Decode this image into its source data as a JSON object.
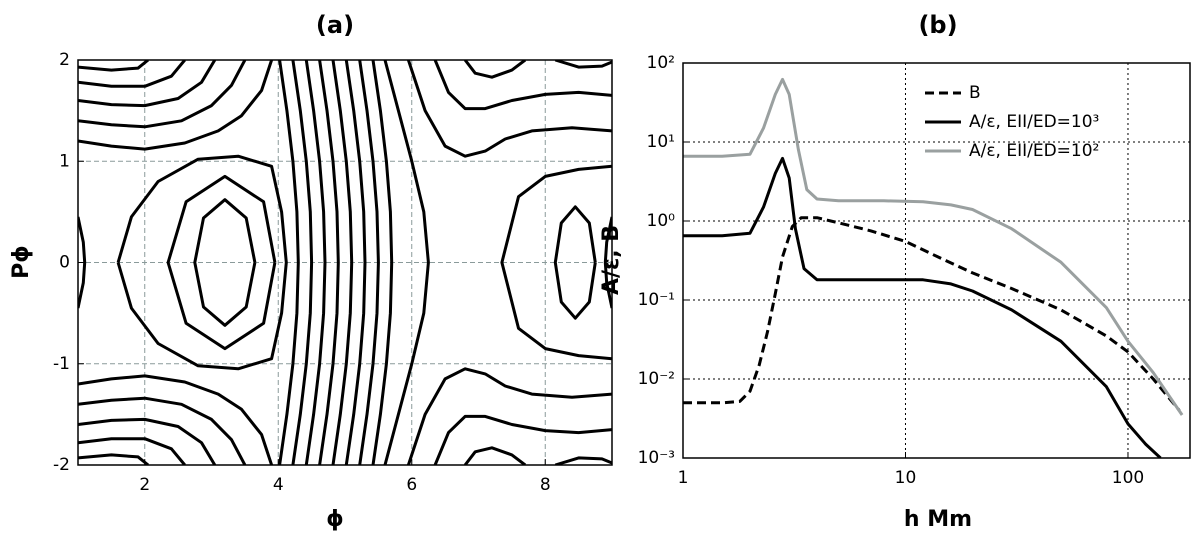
{
  "chart_data": [
    {
      "type": "contour",
      "title": "(a)",
      "x_label": "ϕ",
      "y_label": "Pϕ",
      "color": "#000000",
      "xlim": [
        1,
        9
      ],
      "ylim": [
        -2,
        2
      ],
      "xticks": [
        2,
        4,
        6,
        8
      ],
      "yticks": [
        -2,
        -1,
        0,
        1,
        2
      ],
      "grid": true,
      "series": [
        {
          "x": [
            3.65,
            3.52,
            3.2,
            2.88,
            2.75,
            2.88,
            3.2,
            3.52,
            3.65
          ],
          "values": [
            0,
            0.44,
            0.62,
            0.44,
            0,
            -0.44,
            -0.62,
            -0.44,
            0
          ]
        },
        {
          "x": [
            3.95,
            3.78,
            3.2,
            2.62,
            2.35,
            2.62,
            3.2,
            3.78,
            3.95
          ],
          "values": [
            0,
            0.6,
            0.85,
            0.6,
            0,
            -0.6,
            -0.85,
            -0.6,
            0
          ]
        },
        {
          "x": [
            1.6,
            1.8,
            2.2,
            2.8,
            3.4,
            3.9,
            4.05,
            4.12,
            4.05,
            3.9,
            3.4,
            2.8,
            2.2,
            1.8,
            1.6
          ],
          "values": [
            0,
            0.45,
            0.8,
            1.02,
            1.05,
            0.95,
            0.5,
            0,
            -0.5,
            -0.95,
            -1.05,
            -1.02,
            -0.8,
            -0.45,
            0
          ]
        },
        {
          "x": [
            1,
            1.08,
            1.1,
            1.08,
            1
          ],
          "values": [
            0.45,
            0.2,
            0,
            -0.2,
            -0.45
          ]
        },
        {
          "x": [
            1,
            1.5,
            2,
            2.6,
            3.1,
            3.45,
            3.75,
            3.9
          ],
          "values": [
            1.2,
            1.15,
            1.12,
            1.18,
            1.3,
            1.45,
            1.7,
            2
          ]
        },
        {
          "x": [
            1,
            1.5,
            2,
            2.55,
            3.0,
            3.3,
            3.5
          ],
          "values": [
            1.4,
            1.36,
            1.34,
            1.4,
            1.55,
            1.75,
            2
          ]
        },
        {
          "x": [
            1,
            1.5,
            2,
            2.5,
            2.85,
            3.05
          ],
          "values": [
            1.6,
            1.56,
            1.55,
            1.62,
            1.78,
            2
          ]
        },
        {
          "x": [
            1,
            1.5,
            2,
            2.4,
            2.6
          ],
          "values": [
            1.78,
            1.74,
            1.74,
            1.84,
            2
          ]
        },
        {
          "x": [
            1,
            1.5,
            1.9,
            2.05
          ],
          "values": [
            1.93,
            1.9,
            1.92,
            2
          ]
        },
        {
          "x": [
            1,
            1.5,
            2,
            2.6,
            3.1,
            3.45,
            3.75,
            3.9
          ],
          "values": [
            -1.2,
            -1.15,
            -1.12,
            -1.18,
            -1.3,
            -1.45,
            -1.7,
            -2
          ]
        },
        {
          "x": [
            1,
            1.5,
            2,
            2.55,
            3.0,
            3.3,
            3.5
          ],
          "values": [
            -1.4,
            -1.36,
            -1.34,
            -1.4,
            -1.55,
            -1.75,
            -2
          ]
        },
        {
          "x": [
            1,
            1.5,
            2,
            2.5,
            2.85,
            3.05
          ],
          "values": [
            -1.6,
            -1.56,
            -1.55,
            -1.62,
            -1.78,
            -2
          ]
        },
        {
          "x": [
            1,
            1.5,
            2,
            2.4,
            2.6
          ],
          "values": [
            -1.78,
            -1.74,
            -1.74,
            -1.84,
            -2
          ]
        },
        {
          "x": [
            1,
            1.5,
            1.9,
            2.05
          ],
          "values": [
            -1.93,
            -1.9,
            -1.92,
            -2
          ]
        },
        {
          "x": [
            4.02,
            4.13,
            4.22,
            4.28,
            4.3,
            4.28,
            4.22,
            4.13,
            4.02
          ],
          "values": [
            2,
            1.5,
            1,
            0.5,
            0,
            -0.5,
            -1,
            -1.5,
            -2
          ]
        },
        {
          "x": [
            4.22,
            4.33,
            4.42,
            4.48,
            4.5,
            4.48,
            4.42,
            4.33,
            4.22
          ],
          "values": [
            2,
            1.5,
            1,
            0.5,
            0,
            -0.5,
            -1,
            -1.5,
            -2
          ]
        },
        {
          "x": [
            4.42,
            4.53,
            4.62,
            4.68,
            4.7,
            4.68,
            4.62,
            4.53,
            4.42
          ],
          "values": [
            2,
            1.5,
            1,
            0.5,
            0,
            -0.5,
            -1,
            -1.5,
            -2
          ]
        },
        {
          "x": [
            4.62,
            4.73,
            4.82,
            4.88,
            4.9,
            4.88,
            4.82,
            4.73,
            4.62
          ],
          "values": [
            2,
            1.5,
            1,
            0.5,
            0,
            -0.5,
            -1,
            -1.5,
            -2
          ]
        },
        {
          "x": [
            4.82,
            4.93,
            5.02,
            5.08,
            5.1,
            5.08,
            5.02,
            4.93,
            4.82
          ],
          "values": [
            2,
            1.5,
            1,
            0.5,
            0,
            -0.5,
            -1,
            -1.5,
            -2
          ]
        },
        {
          "x": [
            5.02,
            5.13,
            5.22,
            5.28,
            5.3,
            5.28,
            5.22,
            5.13,
            5.02
          ],
          "values": [
            2,
            1.5,
            1,
            0.5,
            0,
            -0.5,
            -1,
            -1.5,
            -2
          ]
        },
        {
          "x": [
            5.22,
            5.33,
            5.42,
            5.48,
            5.5,
            5.48,
            5.42,
            5.33,
            5.22
          ],
          "values": [
            2,
            1.5,
            1,
            0.5,
            0,
            -0.5,
            -1,
            -1.5,
            -2
          ]
        },
        {
          "x": [
            5.42,
            5.53,
            5.62,
            5.68,
            5.7,
            5.68,
            5.62,
            5.53,
            5.42
          ],
          "values": [
            2,
            1.5,
            1,
            0.5,
            0,
            -0.5,
            -1,
            -1.5,
            -2
          ]
        },
        {
          "x": [
            5.6,
            5.8,
            6.0,
            6.18,
            6.25,
            6.18,
            6.0,
            5.8,
            5.6
          ],
          "values": [
            2,
            1.5,
            1,
            0.5,
            0,
            -0.5,
            -1,
            -1.5,
            -2
          ]
        },
        {
          "x": [
            5.95,
            6.2,
            6.5,
            6.8,
            7.1,
            7.4,
            7.8,
            8.4,
            9
          ],
          "values": [
            2,
            1.5,
            1.15,
            1.05,
            1.1,
            1.22,
            1.3,
            1.33,
            1.3
          ]
        },
        {
          "x": [
            6.35,
            6.55,
            6.8,
            7.1,
            7.5,
            8,
            8.5,
            9
          ],
          "values": [
            2,
            1.68,
            1.52,
            1.52,
            1.6,
            1.66,
            1.68,
            1.65
          ]
        },
        {
          "x": [
            6.8,
            6.95,
            7.2,
            7.5,
            7.7
          ],
          "values": [
            2,
            1.87,
            1.83,
            1.9,
            2
          ]
        },
        {
          "x": [
            8.15,
            8.5,
            8.85,
            9
          ],
          "values": [
            2,
            1.93,
            1.94,
            1.98
          ]
        },
        {
          "x": [
            5.95,
            6.2,
            6.5,
            6.8,
            7.1,
            7.4,
            7.8,
            8.4,
            9
          ],
          "values": [
            -2,
            -1.5,
            -1.15,
            -1.05,
            -1.1,
            -1.22,
            -1.3,
            -1.33,
            -1.3
          ]
        },
        {
          "x": [
            6.35,
            6.55,
            6.8,
            7.1,
            7.5,
            8,
            8.5,
            9
          ],
          "values": [
            -2,
            -1.68,
            -1.52,
            -1.52,
            -1.6,
            -1.66,
            -1.68,
            -1.65
          ]
        },
        {
          "x": [
            6.8,
            6.95,
            7.2,
            7.5,
            7.7
          ],
          "values": [
            -2,
            -1.87,
            -1.83,
            -1.9,
            -2
          ]
        },
        {
          "x": [
            8.15,
            8.5,
            8.85,
            9
          ],
          "values": [
            -2,
            -1.93,
            -1.94,
            -1.98
          ]
        },
        {
          "x": [
            8.75,
            8.66,
            8.45,
            8.24,
            8.15,
            8.24,
            8.45,
            8.66,
            8.75
          ],
          "values": [
            0,
            0.39,
            0.55,
            0.39,
            0,
            -0.39,
            -0.55,
            -0.39,
            0
          ]
        },
        {
          "x": [
            9,
            8.5,
            8,
            7.6,
            7.35,
            7.6,
            8,
            8.5,
            9
          ],
          "values": [
            0.95,
            0.92,
            0.85,
            0.65,
            0,
            -0.65,
            -0.85,
            -0.92,
            -0.95
          ]
        },
        {
          "x": [
            9,
            8.92,
            8.9,
            8.92,
            9
          ],
          "values": [
            0.45,
            0.2,
            0,
            -0.2,
            -0.45
          ]
        }
      ]
    },
    {
      "type": "line",
      "title": "(b)",
      "x_label": "h Mm",
      "y_label": "A/ε, B",
      "xscale": "log",
      "yscale": "log",
      "xlim": [
        1,
        190
      ],
      "ylim": [
        0.001,
        100
      ],
      "xticks": [
        1,
        10,
        100
      ],
      "yticks": [
        {
          "value": 0.001,
          "label": "10⁻³"
        },
        {
          "value": 0.01,
          "label": "10⁻²"
        },
        {
          "value": 0.1,
          "label": "10⁻¹"
        },
        {
          "value": 1,
          "label": "10⁰"
        },
        {
          "value": 10,
          "label": "10¹"
        },
        {
          "value": 100,
          "label": "10²"
        }
      ],
      "grid": true,
      "legend": "upper right",
      "series": [
        {
          "name": "B",
          "color": "#000000",
          "linestyle": "dashed",
          "x": [
            1,
            1.5,
            1.8,
            2.0,
            2.2,
            2.4,
            2.6,
            2.8,
            3.1,
            3.4,
            4,
            5,
            7,
            10,
            15,
            20,
            30,
            50,
            80,
            100,
            130,
            170
          ],
          "values": [
            0.005,
            0.005,
            0.0052,
            0.007,
            0.015,
            0.04,
            0.12,
            0.35,
            0.85,
            1.1,
            1.1,
            0.95,
            0.75,
            0.55,
            0.32,
            0.22,
            0.14,
            0.075,
            0.035,
            0.022,
            0.01,
            0.004
          ]
        },
        {
          "name": "A/ε, EII/ED=10³",
          "color": "#000000",
          "linestyle": "solid",
          "x": [
            1,
            1.5,
            2.0,
            2.3,
            2.6,
            2.8,
            3.0,
            3.2,
            3.5,
            4,
            5,
            8,
            12,
            16,
            20,
            30,
            50,
            80,
            100,
            120,
            140
          ],
          "values": [
            0.65,
            0.65,
            0.7,
            1.5,
            4,
            6.2,
            3.5,
            0.8,
            0.25,
            0.18,
            0.18,
            0.18,
            0.18,
            0.16,
            0.13,
            0.075,
            0.03,
            0.008,
            0.0027,
            0.0015,
            0.001
          ]
        },
        {
          "name": "A/ε, EII/ED=10²",
          "color": "#9aa0a0",
          "linestyle": "solid",
          "x": [
            1,
            1.5,
            2.0,
            2.3,
            2.6,
            2.8,
            3.0,
            3.3,
            3.6,
            4,
            5,
            8,
            12,
            16,
            20,
            30,
            50,
            80,
            100,
            130,
            175
          ],
          "values": [
            6.6,
            6.6,
            7,
            15,
            40,
            62,
            40,
            8,
            2.5,
            1.9,
            1.8,
            1.8,
            1.75,
            1.6,
            1.4,
            0.8,
            0.3,
            0.08,
            0.03,
            0.012,
            0.0035
          ]
        }
      ]
    }
  ]
}
